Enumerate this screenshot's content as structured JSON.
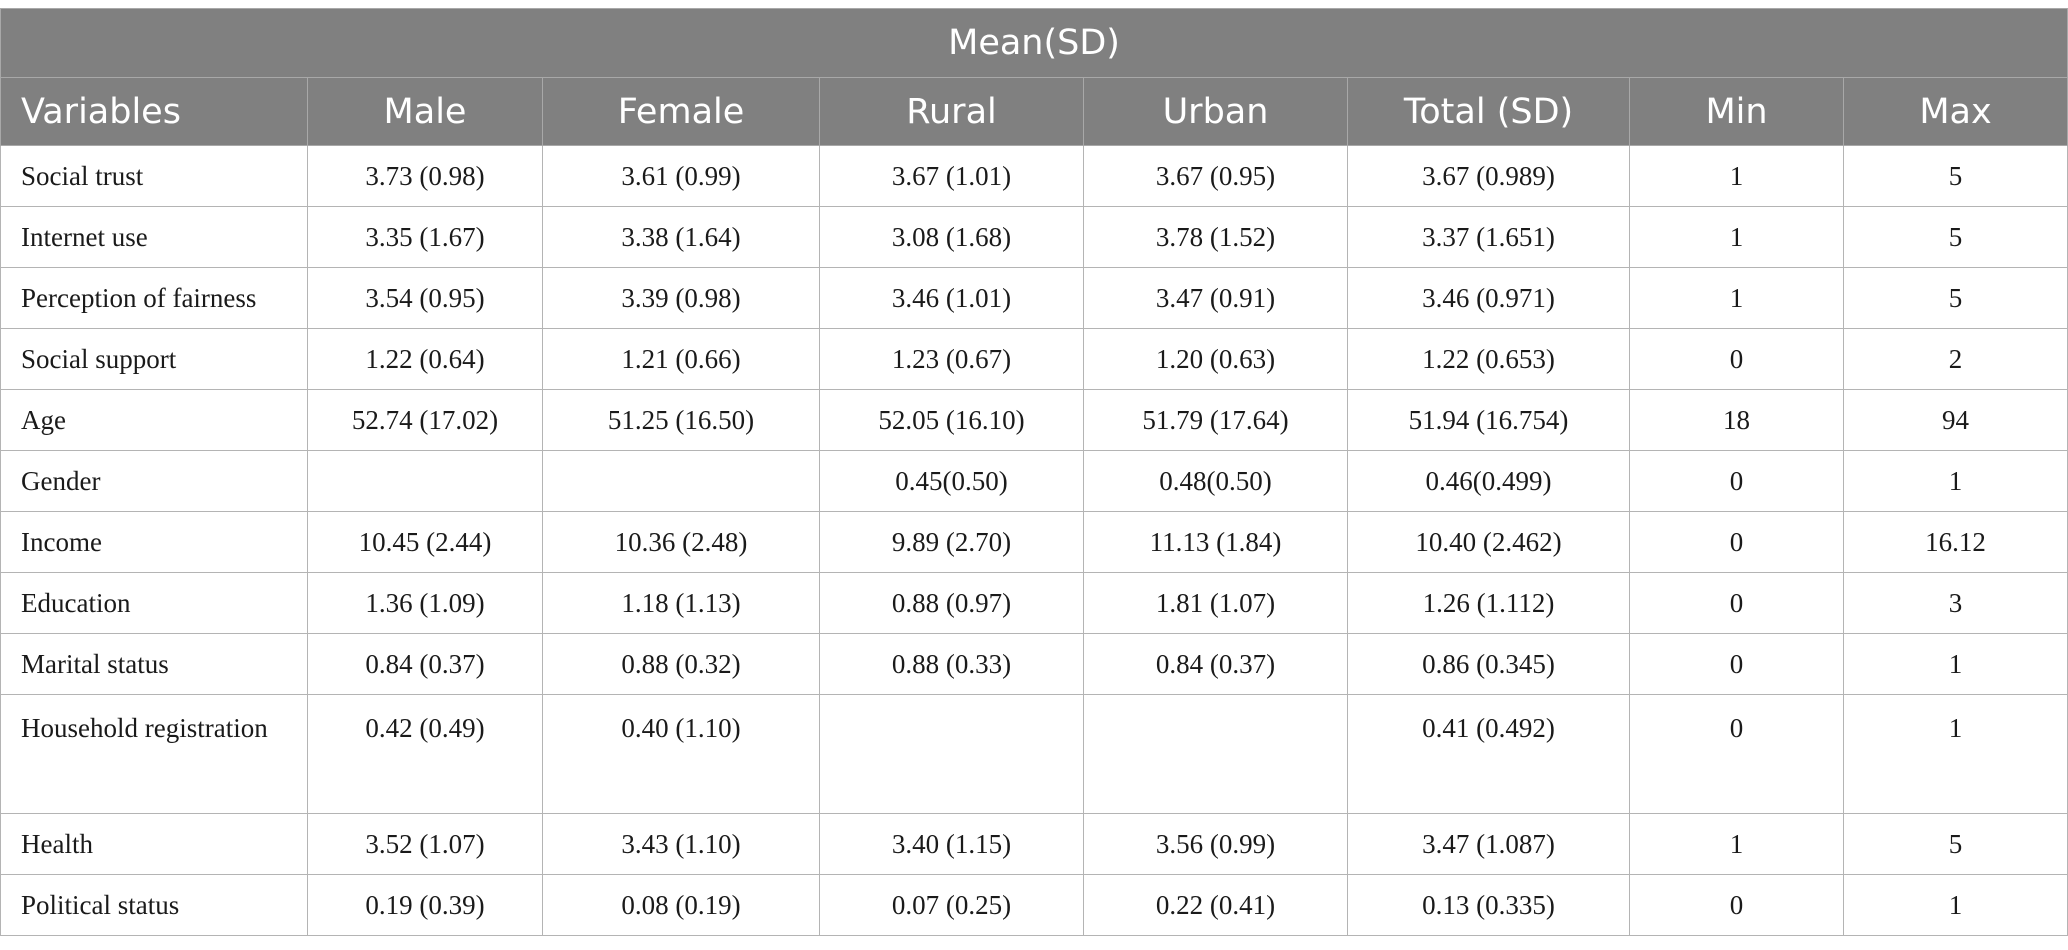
{
  "table": {
    "banner": "Mean(SD)",
    "columns": [
      "Variables",
      "Male",
      "Female",
      "Rural",
      "Urban",
      "Total (SD)",
      "Min",
      "Max"
    ],
    "rows": [
      [
        "Social trust",
        "3.73 (0.98)",
        "3.61 (0.99)",
        "3.67 (1.01)",
        "3.67 (0.95)",
        "3.67 (0.989)",
        "1",
        "5"
      ],
      [
        "Internet use",
        "3.35 (1.67)",
        "3.38 (1.64)",
        "3.08 (1.68)",
        "3.78 (1.52)",
        "3.37 (1.651)",
        "1",
        "5"
      ],
      [
        "Perception of fairness",
        "3.54 (0.95)",
        "3.39 (0.98)",
        "3.46 (1.01)",
        "3.47 (0.91)",
        "3.46 (0.971)",
        "1",
        "5"
      ],
      [
        "Social support",
        "1.22 (0.64)",
        "1.21 (0.66)",
        "1.23 (0.67)",
        "1.20 (0.63)",
        "1.22 (0.653)",
        "0",
        "2"
      ],
      [
        "Age",
        "52.74 (17.02)",
        "51.25 (16.50)",
        "52.05 (16.10)",
        "51.79 (17.64)",
        "51.94 (16.754)",
        "18",
        "94"
      ],
      [
        "Gender",
        "",
        "",
        "0.45(0.50)",
        "0.48(0.50)",
        "0.46(0.499)",
        "0",
        "1"
      ],
      [
        "Income",
        "10.45 (2.44)",
        "10.36 (2.48)",
        "9.89 (2.70)",
        "11.13 (1.84)",
        "10.40 (2.462)",
        "0",
        "16.12"
      ],
      [
        "Education",
        "1.36 (1.09)",
        "1.18 (1.13)",
        "0.88 (0.97)",
        "1.81 (1.07)",
        "1.26 (1.112)",
        "0",
        "3"
      ],
      [
        "Marital status",
        "0.84 (0.37)",
        "0.88 (0.32)",
        "0.88 (0.33)",
        "0.84 (0.37)",
        "0.86 (0.345)",
        "0",
        "1"
      ],
      [
        "Household registration",
        "0.42 (0.49)",
        "0.40 (1.10)",
        "",
        "",
        "0.41 (0.492)",
        "0",
        "1"
      ],
      [
        "Health",
        "3.52 (1.07)",
        "3.43 (1.10)",
        "3.40 (1.15)",
        "3.56 (0.99)",
        "3.47 (1.087)",
        "1",
        "5"
      ],
      [
        "Political status",
        "0.19 (0.39)",
        "0.08 (0.19)",
        "0.07 (0.25)",
        "0.22 (0.41)",
        "0.13 (0.335)",
        "0",
        "1"
      ]
    ]
  },
  "colors": {
    "header_bg": "#808080",
    "header_text": "#ffffff",
    "grid": "#b4b4b4"
  }
}
